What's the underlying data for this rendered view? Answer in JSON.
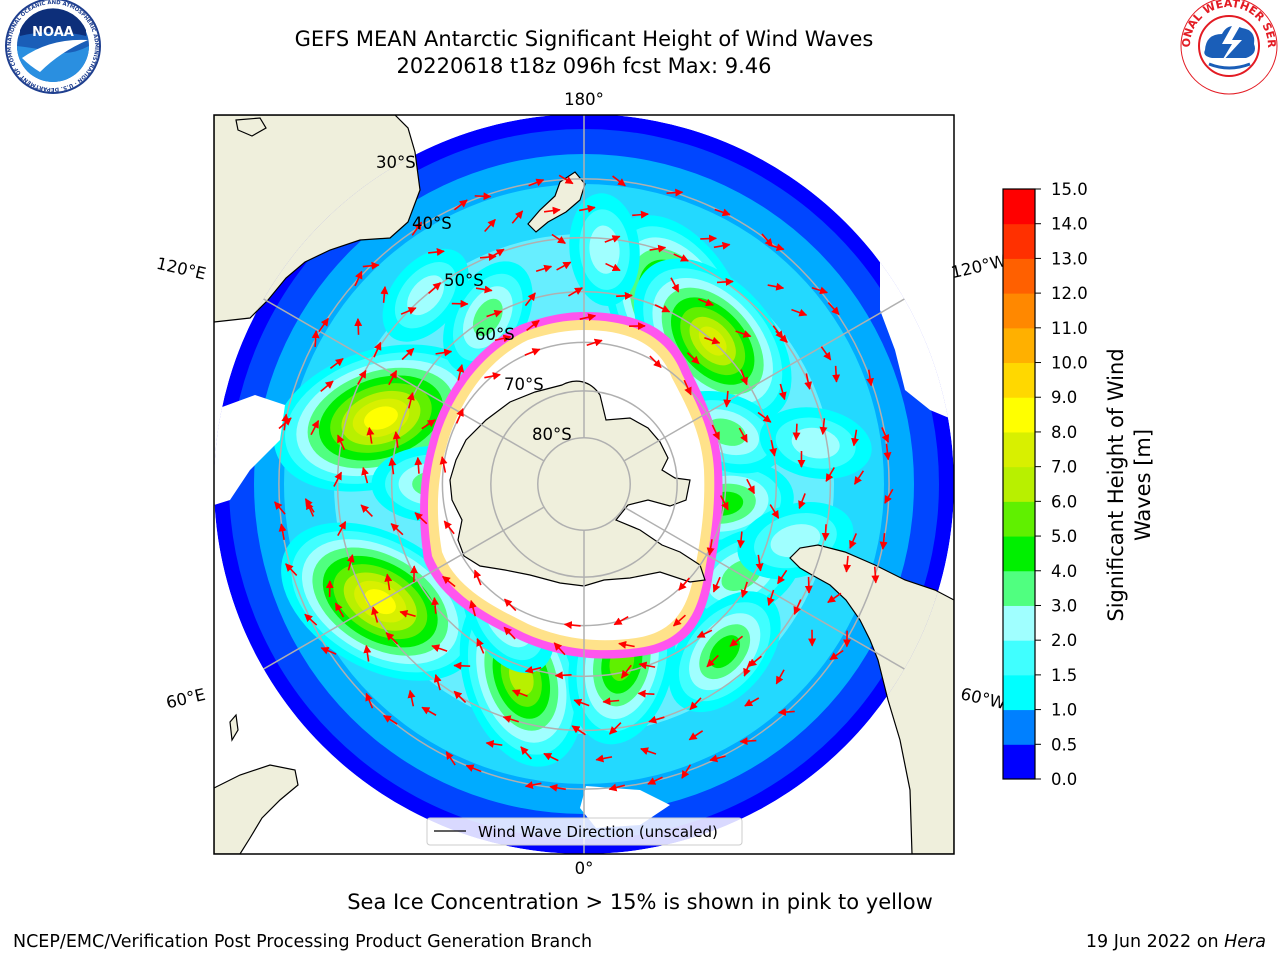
{
  "title": {
    "line1": "GEFS MEAN Antarctic Significant Height of Wind Waves",
    "line2": "20220618 t18z 096h fcst   Max: 9.46"
  },
  "map": {
    "projection": "south-polar-stereographic",
    "meridian_labels": [
      "180°",
      "120°E",
      "120°W",
      "60°E",
      "60°W",
      "0°"
    ],
    "latitude_labels": [
      "30°S",
      "40°S",
      "50°S",
      "60°S",
      "70°S",
      "80°S"
    ],
    "legend_label": "Wind Wave Direction (unscaled)",
    "land_color": "#efefdc",
    "ice_color": "#ffffff",
    "ice_edge_colors": [
      "#ff00ff",
      "#ffaa44",
      "#ffff66"
    ]
  },
  "chart_data": {
    "type": "heatmap",
    "title": "GEFS MEAN Antarctic Significant Height of Wind Waves",
    "subtitle": "20220618 t18z 096h fcst   Max: 9.46",
    "max_value": 9.46,
    "colorbar": {
      "label_line1": "Significant Height of Wind",
      "label_line2": "Waves [m]",
      "ticks": [
        "0.0",
        "0.5",
        "1.0",
        "1.5",
        "2.0",
        "3.0",
        "4.0",
        "5.0",
        "6.0",
        "7.0",
        "8.0",
        "9.0",
        "10.0",
        "11.0",
        "12.0",
        "13.0",
        "14.0",
        "15.0"
      ],
      "colors": [
        "#0000ff",
        "#0080ff",
        "#00ffff",
        "#40ffff",
        "#a0ffff",
        "#50ff80",
        "#00f000",
        "#60f000",
        "#b8f000",
        "#d8f000",
        "#ffff00",
        "#ffd800",
        "#ffb000",
        "#ff8800",
        "#ff6000",
        "#ff3000",
        "#ff0000"
      ]
    },
    "blobs": [
      {
        "lon": 108,
        "lat": -46,
        "value": 8.5
      },
      {
        "lon": -152,
        "lat": -49,
        "value": 7.5
      },
      {
        "lon": -138,
        "lat": -50,
        "value": 7.0
      },
      {
        "lon": 60,
        "lat": -42,
        "value": 8.2
      },
      {
        "lon": 18,
        "lat": -48,
        "value": 6.5
      },
      {
        "lon": -12,
        "lat": -52,
        "value": 5.5
      },
      {
        "lon": -82,
        "lat": -60,
        "value": 4.0
      },
      {
        "lon": -60,
        "lat": -52,
        "value": 3.5
      },
      {
        "lon": -40,
        "lat": -45,
        "value": 4.0
      },
      {
        "lon": -75,
        "lat": -45,
        "value": 2.8
      },
      {
        "lon": 150,
        "lat": -50,
        "value": 3.0
      },
      {
        "lon": 90,
        "lat": -58,
        "value": 3.0
      },
      {
        "lon": -175,
        "lat": -42,
        "value": 2.5
      },
      {
        "lon": 140,
        "lat": -40,
        "value": 2.2
      },
      {
        "lon": 30,
        "lat": -58,
        "value": 3.2
      },
      {
        "lon": -110,
        "lat": -58,
        "value": 3.0
      },
      {
        "lon": -100,
        "lat": -42,
        "value": 2.5
      }
    ]
  },
  "footer": {
    "note": "Sea Ice Concentration > 15% is shown in pink to yellow",
    "credit_left": "NCEP/EMC/Verification Post Processing Product Generation Branch",
    "credit_right_date": "19 Jun 2022 on",
    "credit_right_host": "Hera"
  },
  "logos": {
    "noaa_text": "NOAA",
    "noaa_ring_text": "NATIONAL OCEANIC AND ATMOSPHERIC ADMINISTRATION · U.S. DEPARTMENT OF COMMERCE ·",
    "nws_ring_text": "NATIONAL WEATHER SERVICE"
  }
}
